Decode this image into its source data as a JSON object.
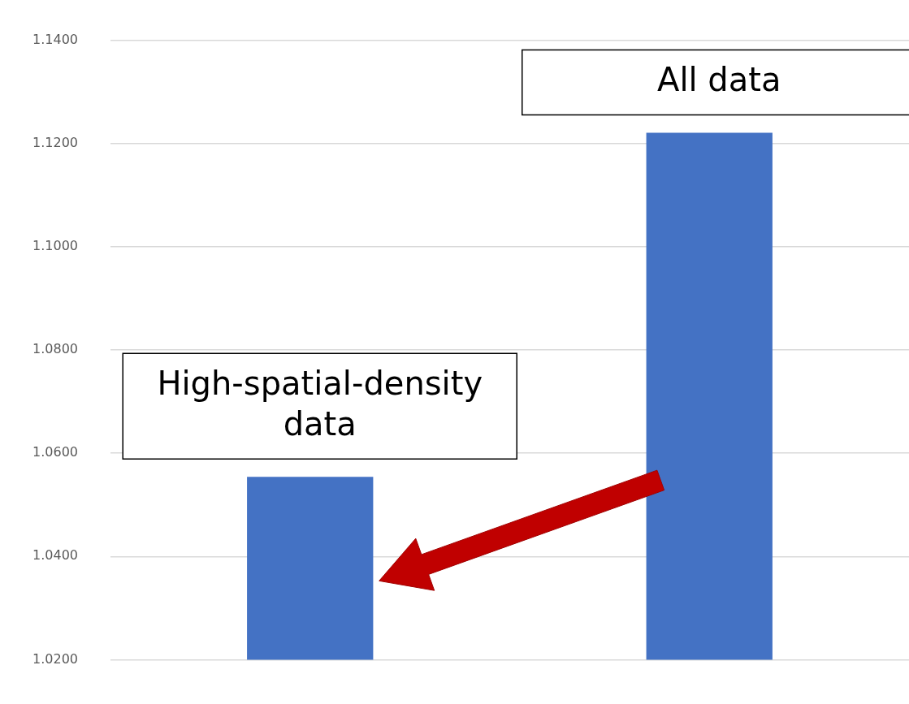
{
  "chart_data": {
    "type": "bar",
    "categories": [
      null,
      null
    ],
    "values": [
      1.0554,
      1.1221
    ],
    "color": "#4472c4",
    "ylim": [
      1.02,
      1.14
    ],
    "yticks": [
      {
        "value": 1.02,
        "label": "1.0200"
      },
      {
        "value": 1.04,
        "label": "1.0400"
      },
      {
        "value": 1.06,
        "label": "1.0600"
      },
      {
        "value": 1.08,
        "label": "1.0800"
      },
      {
        "value": 1.1,
        "label": "1.1000"
      },
      {
        "value": 1.12,
        "label": "1.1200"
      },
      {
        "value": 1.14,
        "label": "1.1400"
      }
    ],
    "grid": "y",
    "annotations": [
      "High-spatial-density data",
      "All data"
    ]
  }
}
